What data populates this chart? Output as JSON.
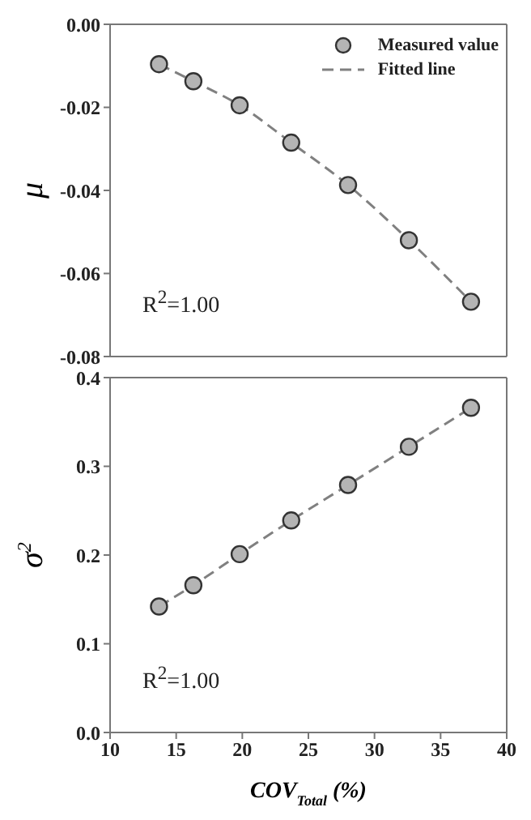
{
  "chart_data": [
    {
      "type": "scatter",
      "ylabel": "μ",
      "xlim": [
        10,
        40
      ],
      "xticks": [
        10,
        15,
        20,
        25,
        30,
        35,
        40
      ],
      "ylim": [
        -0.08,
        0
      ],
      "yticks": [
        {
          "value": -0.08,
          "label": "-0.08"
        },
        {
          "value": -0.06,
          "label": "-0.06"
        },
        {
          "value": -0.04,
          "label": "-0.04"
        },
        {
          "value": -0.02,
          "label": "-0.02"
        },
        {
          "value": 0,
          "label": "0.00"
        }
      ],
      "tick_labels": "y",
      "legend": "top right",
      "annotations": [
        "R$^{2}$=1.00"
      ],
      "x": [
        13.7,
        16.3,
        19.8,
        23.7,
        28.0,
        32.6,
        37.3
      ],
      "series": [
        {
          "name": "Measured value",
          "marker": "circle",
          "color": "#b4b4b4",
          "values": [
            -0.0096,
            -0.0137,
            -0.0195,
            -0.0285,
            -0.0387,
            -0.052,
            -0.0668
          ]
        },
        {
          "name": "Fitted line",
          "type": "line",
          "line_style": "dashed",
          "color": "#808080",
          "values": [
            -0.0096,
            -0.0137,
            -0.0195,
            -0.0285,
            -0.0387,
            -0.052,
            -0.0668
          ]
        }
      ]
    },
    {
      "type": "scatter",
      "ylabel": "σ$^{2}$",
      "xlabel": "COV$_{Total}$ (%)",
      "xlim": [
        10,
        40
      ],
      "xticks": [
        10,
        15,
        20,
        25,
        30,
        35,
        40
      ],
      "ylim": [
        0,
        0.4
      ],
      "yticks": [
        {
          "value": 0,
          "label": "0.0"
        },
        {
          "value": 0.1,
          "label": "0.1"
        },
        {
          "value": 0.2,
          "label": "0.2"
        },
        {
          "value": 0.3,
          "label": "0.3"
        },
        {
          "value": 0.4,
          "label": "0.4"
        }
      ],
      "annotations": [
        "R$^{2}$=1.00"
      ],
      "x": [
        13.7,
        16.3,
        19.8,
        23.7,
        28.0,
        32.6,
        37.3
      ],
      "series": [
        {
          "marker": "circle",
          "color": "#b4b4b4",
          "values": [
            0.142,
            0.166,
            0.201,
            0.239,
            0.279,
            0.322,
            0.366
          ]
        },
        {
          "type": "line",
          "line_style": "dashed",
          "color": "#808080",
          "values": [
            0.142,
            0.166,
            0.201,
            0.239,
            0.279,
            0.322,
            0.366
          ]
        }
      ]
    }
  ]
}
